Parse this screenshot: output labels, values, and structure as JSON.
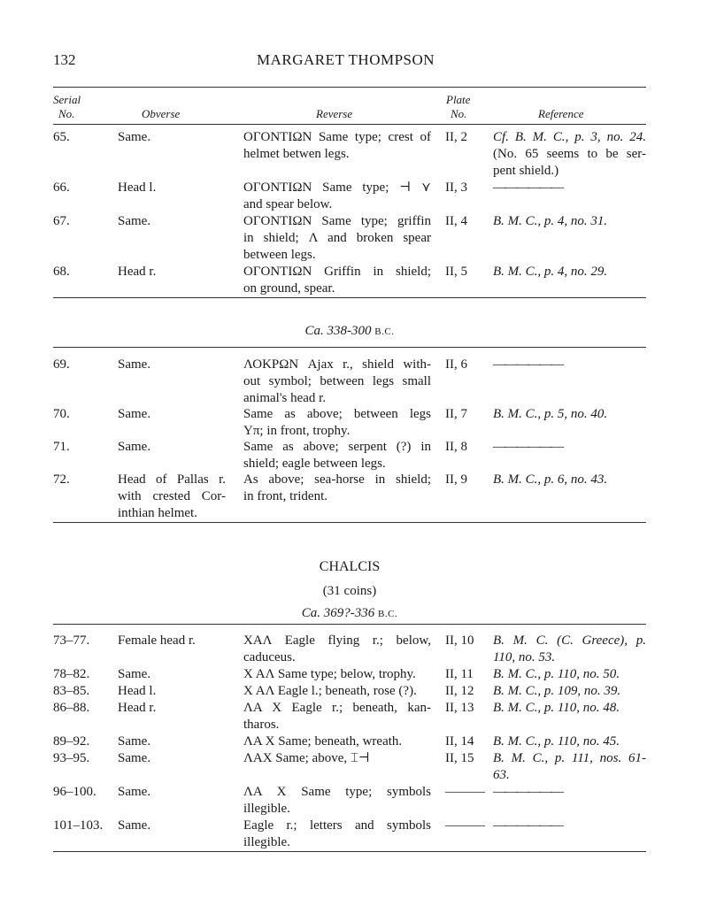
{
  "header": {
    "page_number": "132",
    "running_title": "MARGARET THOMPSON"
  },
  "columns": {
    "serial_1": "Serial",
    "serial_2": "No.",
    "obverse": "Obverse",
    "reverse": "Reverse",
    "plate_1": "Plate",
    "plate_2": "No.",
    "reference": "Reference"
  },
  "section1": [
    {
      "serial": "65.",
      "obverse": [
        "Same."
      ],
      "reverse": [
        "ΟΓΟΝΤΙΩΝ Same type; crest of",
        "helmet betwen legs."
      ],
      "plate": "II, 2",
      "reference": [
        "Cf. B. M. C., p. 3, no. 24.",
        "(No. 65 seems to be ser-",
        "pent shield.)"
      ]
    },
    {
      "serial": "66.",
      "obverse": [
        "Head l."
      ],
      "reverse": [
        "ΟΓΟΝΤΙΩΝ Same type; ⊣ ⋎",
        "and spear below."
      ],
      "plate": "II, 3",
      "reference": [
        "——————"
      ]
    },
    {
      "serial": "67.",
      "obverse": [
        "Same."
      ],
      "reverse": [
        "ΟΓΟΝΤΙΩΝ Same type; griffin",
        "in shield; Λ and broken spear",
        "between legs."
      ],
      "plate": "II, 4",
      "reference": [
        "B. M. C., p. 4, no. 31."
      ]
    },
    {
      "serial": "68.",
      "obverse": [
        "Head r."
      ],
      "reverse": [
        "ΟΓΟΝΤΙΩΝ Griffin in shield;",
        "on ground, spear."
      ],
      "plate": "II, 5",
      "reference": [
        "B. M. C., p. 4, no. 29."
      ]
    }
  ],
  "period1": {
    "text": "Ca. 338-300",
    "era": "B.C."
  },
  "section2": [
    {
      "serial": "69.",
      "obverse": [
        "Same."
      ],
      "reverse": [
        "ΛΟΚΡΩΝ Ajax r., shield with-",
        "out symbol; between legs small",
        "animal's head r."
      ],
      "plate": "II, 6",
      "reference": [
        "——————"
      ]
    },
    {
      "serial": "70.",
      "obverse": [
        "Same."
      ],
      "reverse": [
        "Same as above; between legs",
        "Υπ; in front, trophy."
      ],
      "plate": "II, 7",
      "reference": [
        "B. M. C., p. 5, no. 40."
      ]
    },
    {
      "serial": "71.",
      "obverse": [
        "Same."
      ],
      "reverse": [
        "Same as above; serpent (?) in",
        "shield; eagle between legs."
      ],
      "plate": "II, 8",
      "reference": [
        "——————"
      ]
    },
    {
      "serial": "72.",
      "obverse": [
        "Head of Pallas r.",
        "with crested Cor-",
        "inthian helmet."
      ],
      "reverse": [
        "As above; sea-horse in shield;",
        "in front, trident."
      ],
      "plate": "II, 9",
      "reference": [
        "B. M. C., p. 6, no. 43."
      ]
    }
  ],
  "chalcis": {
    "title": "CHALCIS",
    "count": "(31 coins)",
    "period": "Ca. 369?-336",
    "era": "B.C."
  },
  "section3": [
    {
      "serial": "73–77.",
      "obverse": [
        "Female head r."
      ],
      "reverse": [
        "ΧΑΛ Eagle flying r.; below,",
        "caduceus."
      ],
      "plate": "II, 10",
      "reference": [
        "B. M. C. (C. Greece), p.",
        "110, no. 53."
      ]
    },
    {
      "serial": "78–82.",
      "obverse": [
        "Same."
      ],
      "reverse": [
        "Χ ΑΛ Same type; below, trophy."
      ],
      "plate": "II, 11",
      "reference": [
        "B. M. C., p. 110, no. 50."
      ]
    },
    {
      "serial": "83–85.",
      "obverse": [
        "Head l."
      ],
      "reverse": [
        "Χ ΑΛ Eagle l.; beneath, rose (?)."
      ],
      "plate": "II, 12",
      "reference": [
        "B. M. C., p. 109, no. 39."
      ]
    },
    {
      "serial": "86–88.",
      "obverse": [
        "Head r."
      ],
      "reverse": [
        "ΛΑ Χ Eagle r.; beneath, kan-",
        "tharos."
      ],
      "plate": "II, 13",
      "reference": [
        "B. M. C., p. 110, no. 48."
      ]
    },
    {
      "serial": "89–92.",
      "obverse": [
        "Same."
      ],
      "reverse": [
        "ΛΑ Χ Same; beneath, wreath."
      ],
      "plate": "II, 14",
      "reference": [
        "B. M. C., p. 110, no. 45."
      ]
    },
    {
      "serial": "93–95.",
      "obverse": [
        "Same."
      ],
      "reverse": [
        "ΛΑΧ Same; above, ⌶⊣"
      ],
      "plate": "II, 15",
      "reference": [
        "B. M. C., p. 111, nos. 61-",
        "63."
      ]
    },
    {
      "serial": "96–100.",
      "obverse": [
        "Same."
      ],
      "reverse": [
        "ΛΑ Χ Same type; symbols",
        "illegible."
      ],
      "plate": "———",
      "reference": [
        "——————"
      ]
    },
    {
      "serial": "101–103.",
      "obverse": [
        "Same."
      ],
      "reverse": [
        "Eagle r.; letters and symbols",
        "illegible."
      ],
      "plate": "———",
      "reference": [
        "——————"
      ]
    }
  ]
}
